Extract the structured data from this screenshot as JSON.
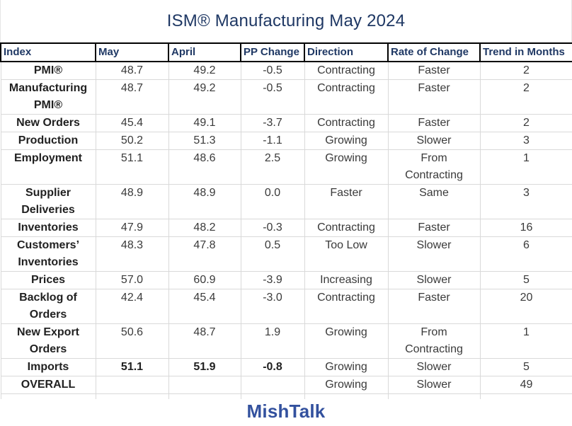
{
  "title": "ISM® Manufacturing May 2024",
  "footer": {
    "brand": "MishTalk"
  },
  "colors": {
    "title": "#1F3864",
    "header_text": "#1F3864",
    "brand": "#33519E",
    "grid_lines": "#D9D9D9",
    "header_border": "#000000"
  },
  "table": {
    "columns": [
      "Index",
      "May",
      "April",
      "PP Change",
      "Direction",
      "Rate of Change",
      "Trend in Months"
    ],
    "column_keys": [
      "index",
      "may",
      "april",
      "pp_change",
      "direction",
      "rate_of_change",
      "trend_in_months"
    ],
    "rows": [
      {
        "index": "PMI®",
        "may": "48.7",
        "april": "49.2",
        "pp_change": "-0.5",
        "direction": "Contracting",
        "rate_of_change": "Faster",
        "trend_in_months": "2",
        "values_bold": false
      },
      {
        "index": "Manufacturing\nPMI®",
        "may": "48.7",
        "april": "49.2",
        "pp_change": "-0.5",
        "direction": "Contracting",
        "rate_of_change": "Faster",
        "trend_in_months": "2",
        "values_bold": false
      },
      {
        "index": "New Orders",
        "may": "45.4",
        "april": "49.1",
        "pp_change": "-3.7",
        "direction": "Contracting",
        "rate_of_change": "Faster",
        "trend_in_months": "2",
        "values_bold": false
      },
      {
        "index": "Production",
        "may": "50.2",
        "april": "51.3",
        "pp_change": "-1.1",
        "direction": "Growing",
        "rate_of_change": "Slower",
        "trend_in_months": "3",
        "values_bold": false
      },
      {
        "index": "Employment",
        "may": "51.1",
        "april": "48.6",
        "pp_change": "2.5",
        "direction": "Growing",
        "rate_of_change": "From\nContracting",
        "trend_in_months": "1",
        "values_bold": false
      },
      {
        "index": "Supplier\nDeliveries",
        "may": "48.9",
        "april": "48.9",
        "pp_change": "0.0",
        "direction": "Faster",
        "rate_of_change": "Same",
        "trend_in_months": "3",
        "values_bold": false
      },
      {
        "index": "Inventories",
        "may": "47.9",
        "april": "48.2",
        "pp_change": "-0.3",
        "direction": "Contracting",
        "rate_of_change": "Faster",
        "trend_in_months": "16",
        "values_bold": false
      },
      {
        "index": "Customers’\nInventories",
        "may": "48.3",
        "april": "47.8",
        "pp_change": "0.5",
        "direction": "Too Low",
        "rate_of_change": "Slower",
        "trend_in_months": "6",
        "values_bold": false
      },
      {
        "index": "Prices",
        "may": "57.0",
        "april": "60.9",
        "pp_change": "-3.9",
        "direction": "Increasing",
        "rate_of_change": "Slower",
        "trend_in_months": "5",
        "values_bold": false
      },
      {
        "index": "Backlog of\nOrders",
        "may": "42.4",
        "april": "45.4",
        "pp_change": "-3.0",
        "direction": "Contracting",
        "rate_of_change": "Faster",
        "trend_in_months": "20",
        "values_bold": false
      },
      {
        "index": "New Export\nOrders",
        "may": "50.6",
        "april": "48.7",
        "pp_change": "1.9",
        "direction": "Growing",
        "rate_of_change": "From\nContracting",
        "trend_in_months": "1",
        "values_bold": false
      },
      {
        "index": "Imports",
        "may": "51.1",
        "april": "51.9",
        "pp_change": "-0.8",
        "direction": "Growing",
        "rate_of_change": "Slower",
        "trend_in_months": "5",
        "values_bold": true
      },
      {
        "index": "OVERALL",
        "may": "",
        "april": "",
        "pp_change": "",
        "direction": "Growing",
        "rate_of_change": "Slower",
        "trend_in_months": "49",
        "values_bold": false
      }
    ]
  }
}
